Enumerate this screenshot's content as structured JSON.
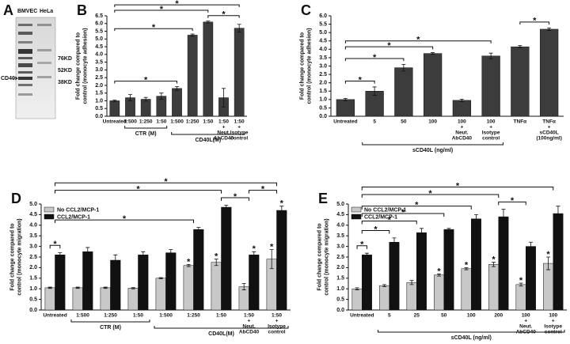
{
  "blot": {
    "panel": "A",
    "lanes": [
      "BMVEC",
      "HeLa"
    ],
    "markers": [
      "76KD",
      "52KD",
      "38KD"
    ],
    "target": "CD40"
  },
  "chart_data": [
    {
      "type": "bar",
      "panel": "B",
      "ylabel": [
        "Fold change compared to",
        "control (monocyte adhesion)"
      ],
      "categories": [
        "Untreated",
        "1:500",
        "1:250",
        "1:50",
        "1:500",
        "1:250",
        "1:50",
        [
          "1:50",
          "+",
          "Neut.",
          "AbCD40"
        ],
        [
          "1:50",
          "+",
          "Isotype",
          "control"
        ]
      ],
      "values": [
        1.0,
        1.2,
        1.1,
        1.3,
        1.8,
        5.25,
        6.1,
        1.2,
        5.7
      ],
      "errors": [
        0.05,
        0.2,
        0.12,
        0.2,
        0.12,
        0.07,
        0.06,
        0.6,
        0.25
      ],
      "color": "#3c3c3c",
      "ylim": [
        0,
        6.5
      ],
      "yticks": [
        {
          "value": 0,
          "label": "0.0"
        },
        {
          "value": 0.5,
          "label": "0.5"
        },
        {
          "value": 1,
          "label": "1.0"
        },
        {
          "value": 1.5,
          "label": "1.5"
        },
        {
          "value": 2,
          "label": "2.0"
        },
        {
          "value": 2.5,
          "label": "2.5"
        },
        {
          "value": 3,
          "label": "3.0"
        },
        {
          "value": 3.5,
          "label": "3.5"
        },
        {
          "value": 4,
          "label": "4.0"
        },
        {
          "value": 4.5,
          "label": "4.5"
        },
        {
          "value": 5,
          "label": "5.0"
        },
        {
          "value": 5.5,
          "label": "5.5"
        },
        {
          "value": 6,
          "label": "6.0"
        },
        {
          "value": 6.5,
          "label": "6.5"
        }
      ],
      "groups": [
        {
          "label": "CTR (M)",
          "from": 1,
          "to": 3
        },
        {
          "label": "CD40L(M)",
          "from": 4,
          "to": 8
        }
      ],
      "significance": [
        {
          "from": 0,
          "to": 8,
          "label": "*"
        },
        {
          "from": 0,
          "to": 6,
          "label": "*"
        },
        {
          "from": 0,
          "to": 5,
          "label": "*"
        },
        {
          "from": 6,
          "to": 8,
          "label": "*"
        },
        {
          "from": 0,
          "to": 4,
          "label": "*"
        }
      ]
    },
    {
      "type": "bar",
      "panel": "C",
      "ylabel": [
        "Fold change compared to",
        "control (monocyte adhesion)"
      ],
      "categories": [
        "Untreated",
        "5",
        "50",
        "100",
        [
          "100",
          "+",
          "Neut.",
          "AbCD40"
        ],
        [
          "100",
          "+",
          "Isotype",
          "control"
        ],
        "TNFα",
        [
          "TNFα",
          "+",
          "sCD40L",
          "(100ng/ml)"
        ]
      ],
      "values": [
        1.0,
        1.5,
        2.9,
        3.75,
        0.95,
        3.6,
        4.15,
        5.2
      ],
      "errors": [
        0.07,
        0.25,
        0.2,
        0.05,
        0.07,
        0.17,
        0.07,
        0.08
      ],
      "color": "#3c3c3c",
      "ylim": [
        0,
        6
      ],
      "yticks": [
        {
          "value": 0,
          "label": "0.0"
        },
        {
          "value": 0.5,
          "label": "0.5"
        },
        {
          "value": 1,
          "label": "1.0"
        },
        {
          "value": 1.5,
          "label": "1.5"
        },
        {
          "value": 2,
          "label": "2.0"
        },
        {
          "value": 2.5,
          "label": "2.5"
        },
        {
          "value": 3,
          "label": "3.0"
        },
        {
          "value": 3.5,
          "label": "3.5"
        },
        {
          "value": 4,
          "label": "4.0"
        },
        {
          "value": 4.5,
          "label": "4.5"
        },
        {
          "value": 5,
          "label": "5.0"
        },
        {
          "value": 5.5,
          "label": "5.5"
        },
        {
          "value": 6,
          "label": "6.0"
        }
      ],
      "groups": [
        {
          "label": "sCD40L (ng/ml)",
          "from": 1,
          "to": 5
        }
      ],
      "significance": [
        {
          "from": 0,
          "to": 1,
          "label": "*"
        },
        {
          "from": 0,
          "to": 2,
          "label": "*"
        },
        {
          "from": 0,
          "to": 3,
          "label": "*"
        },
        {
          "from": 0,
          "to": 5,
          "label": "*"
        },
        {
          "from": 6,
          "to": 7,
          "label": "*"
        }
      ]
    },
    {
      "type": "bar",
      "panel": "D",
      "ylabel": [
        "Fold change compared to",
        "control (monocyte migration)"
      ],
      "categories": [
        "Untreated",
        "1:500",
        "1:250",
        "1:50",
        "1:500",
        "1:250",
        "1:50",
        [
          "1:50",
          "+",
          "Neut.",
          "AbCD40"
        ],
        [
          "1:50",
          "+",
          "Isotype",
          "control"
        ]
      ],
      "series": [
        {
          "name": "No CCL2/MCP-1",
          "color": "#c8c8c8",
          "values": [
            1.05,
            1.05,
            1.05,
            1.03,
            1.5,
            2.1,
            2.25,
            1.1,
            2.4
          ],
          "errors": [
            0.03,
            0.03,
            0.03,
            0.03,
            0.03,
            0.05,
            0.15,
            0.15,
            0.45
          ]
        },
        {
          "name": "CCL2/MCP-1",
          "color": "#111111",
          "values": [
            2.6,
            2.75,
            2.35,
            2.6,
            2.7,
            3.8,
            4.85,
            2.6,
            4.7
          ],
          "errors": [
            0.1,
            0.2,
            0.25,
            0.15,
            0.15,
            0.1,
            0.1,
            0.15,
            0.2
          ]
        }
      ],
      "legend": "upper-left",
      "ylim": [
        0,
        5
      ],
      "yticks": [
        {
          "value": 0,
          "label": "0.0"
        },
        {
          "value": 0.5,
          "label": "0.5"
        },
        {
          "value": 1,
          "label": "1.0"
        },
        {
          "value": 1.5,
          "label": "1.5"
        },
        {
          "value": 2,
          "label": "2.0"
        },
        {
          "value": 2.5,
          "label": "2.5"
        },
        {
          "value": 3,
          "label": "3.0"
        },
        {
          "value": 3.5,
          "label": "3.5"
        },
        {
          "value": 4,
          "label": "4.0"
        },
        {
          "value": 4.5,
          "label": "4.5"
        },
        {
          "value": 5,
          "label": "5.0"
        }
      ],
      "groups": [
        {
          "label": "CTR (M)",
          "from": 1,
          "to": 3
        },
        {
          "label": "CD40L(M)",
          "from": 4,
          "to": 8
        }
      ],
      "significance": [
        {
          "from": 0,
          "to": 0,
          "label": "*"
        },
        {
          "from": 0,
          "to": 8,
          "label": "*"
        },
        {
          "from": 0,
          "to": 6,
          "label": "*"
        },
        {
          "from": 0,
          "to": 5,
          "label": "*"
        },
        {
          "from": 6,
          "to": 7,
          "label": "*"
        },
        {
          "from": 7,
          "to": 8,
          "label": "*"
        }
      ],
      "stars": [
        {
          "series": 0,
          "index": 5,
          "label": "*"
        },
        {
          "series": 0,
          "index": 6,
          "label": "*"
        },
        {
          "series": 0,
          "index": 8,
          "label": "*"
        },
        {
          "series": 1,
          "index": 7,
          "label": "*"
        },
        {
          "series": 1,
          "index": 8,
          "label": "*"
        }
      ]
    },
    {
      "type": "bar",
      "panel": "E",
      "ylabel": [
        "Fold change compared to",
        "control (monocyte migration)"
      ],
      "categories": [
        "Untreated",
        "5",
        "25",
        "50",
        "100",
        "200",
        [
          "100",
          "+",
          "Neut.",
          "AbCD40"
        ],
        [
          "100",
          "+",
          "Isotype",
          "control"
        ]
      ],
      "series": [
        {
          "name": "No CCL2/MCP-1",
          "color": "#c8c8c8",
          "values": [
            1.0,
            1.15,
            1.3,
            1.65,
            1.95,
            2.15,
            1.2,
            2.2
          ],
          "errors": [
            0.05,
            0.05,
            0.1,
            0.05,
            0.05,
            0.1,
            0.07,
            0.3
          ]
        },
        {
          "name": "CCL2/MCP-1",
          "color": "#111111",
          "values": [
            2.6,
            3.2,
            3.65,
            3.8,
            4.3,
            4.4,
            3.0,
            4.55
          ],
          "errors": [
            0.08,
            0.2,
            0.2,
            0.05,
            0.2,
            0.35,
            0.2,
            0.35
          ]
        }
      ],
      "legend": "upper-left",
      "ylim": [
        0,
        5
      ],
      "yticks": [
        {
          "value": 0,
          "label": "0.0"
        },
        {
          "value": 0.5,
          "label": "0.5"
        },
        {
          "value": 1,
          "label": "1.0"
        },
        {
          "value": 1.5,
          "label": "1.5"
        },
        {
          "value": 2,
          "label": "2.0"
        },
        {
          "value": 2.5,
          "label": "2.5"
        },
        {
          "value": 3,
          "label": "3.0"
        },
        {
          "value": 3.5,
          "label": "3.5"
        },
        {
          "value": 4,
          "label": "4.0"
        },
        {
          "value": 4.5,
          "label": "4.5"
        },
        {
          "value": 5,
          "label": "5.0"
        }
      ],
      "groups": [
        {
          "label": "sCD40L (ng/ml)",
          "from": 1,
          "to": 7
        }
      ],
      "significance": [
        {
          "from": 0,
          "to": 0,
          "label": "*"
        },
        {
          "from": 0,
          "to": 1,
          "label": "*"
        },
        {
          "from": 0,
          "to": 2,
          "label": "*"
        },
        {
          "from": 0,
          "to": 3,
          "label": "*"
        },
        {
          "from": 0,
          "to": 4,
          "label": "*"
        },
        {
          "from": 0,
          "to": 5,
          "label": "*"
        },
        {
          "from": 0,
          "to": 7,
          "label": "*"
        },
        {
          "from": 5,
          "to": 6,
          "label": "*"
        }
      ],
      "stars": [
        {
          "series": 0,
          "index": 3,
          "label": "*"
        },
        {
          "series": 0,
          "index": 4,
          "label": "*"
        },
        {
          "series": 0,
          "index": 5,
          "label": "*"
        },
        {
          "series": 0,
          "index": 6,
          "label": "*"
        },
        {
          "series": 0,
          "index": 7,
          "label": "*"
        }
      ]
    }
  ]
}
